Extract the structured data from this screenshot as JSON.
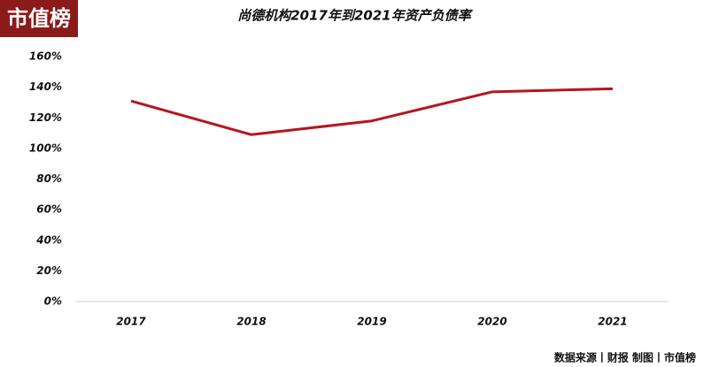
{
  "logo": "市值榜",
  "footer": "数据来源丨财报 制图丨市值榜",
  "chart_data": {
    "type": "line",
    "title": "尚德机构2017年到2021年资产负债率",
    "categories": [
      "2017",
      "2018",
      "2019",
      "2020",
      "2021"
    ],
    "series": [
      {
        "name": "资产负债率",
        "color": "#b5161e",
        "values": [
          131,
          109,
          118,
          137,
          139
        ]
      }
    ],
    "ylim": [
      0,
      160
    ],
    "yticks": [
      {
        "value": 0,
        "label": "0%"
      },
      {
        "value": 20,
        "label": "20%"
      },
      {
        "value": 40,
        "label": "40%"
      },
      {
        "value": 60,
        "label": "60%"
      },
      {
        "value": 80,
        "label": "80%"
      },
      {
        "value": 100,
        "label": "100%"
      },
      {
        "value": 120,
        "label": "120%"
      },
      {
        "value": 140,
        "label": "140%"
      },
      {
        "value": 160,
        "label": "160%"
      }
    ],
    "grid": false
  }
}
